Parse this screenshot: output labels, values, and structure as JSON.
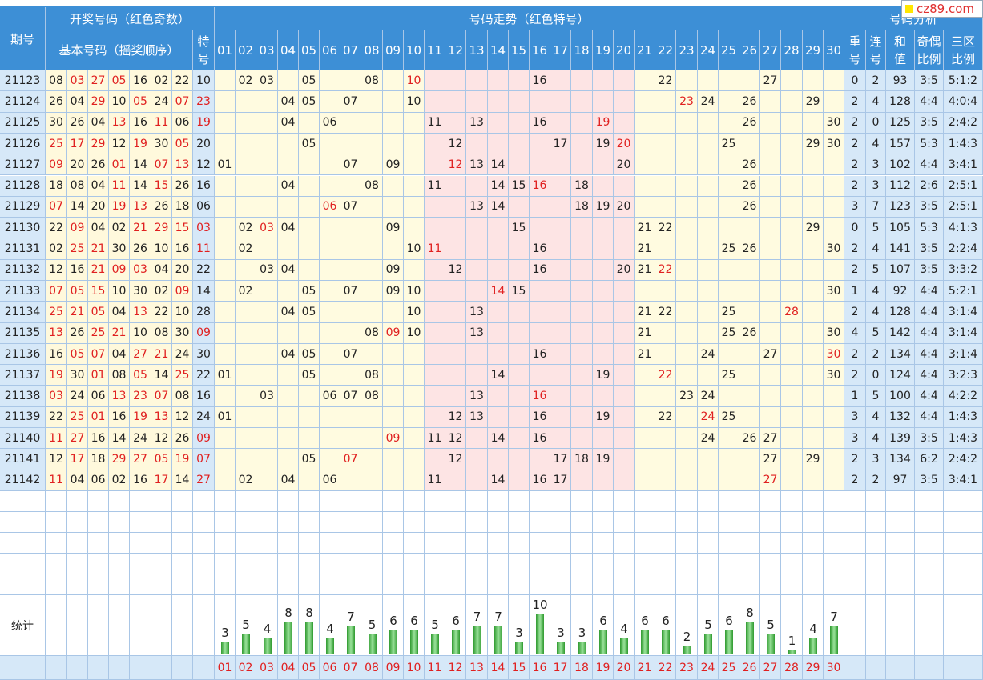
{
  "header": {
    "period_label": "期号",
    "open_group_label": "开奖号码（红色奇数）",
    "basic_label": "基本号码（摇奖顺序）",
    "special_label": "特号",
    "trend_group_label": "号码走势（红色特号）",
    "analysis_group_label": "号码分析",
    "repeat_label": "重号",
    "consec_label": "连号",
    "sum_label": "和值",
    "parity_label": "奇偶比例",
    "zone_label": "三区比例",
    "numbers": [
      "01",
      "02",
      "03",
      "04",
      "05",
      "06",
      "07",
      "08",
      "09",
      "10",
      "11",
      "12",
      "13",
      "14",
      "15",
      "16",
      "17",
      "18",
      "19",
      "20",
      "21",
      "22",
      "23",
      "24",
      "25",
      "26",
      "27",
      "28",
      "29",
      "30"
    ]
  },
  "logo_text": "cz89.com",
  "stats_label": "统计",
  "rows": [
    {
      "period": "21123",
      "nums": [
        "08",
        "03",
        "27",
        "05",
        "16",
        "02",
        "22"
      ],
      "special": "10",
      "repeat": "0",
      "consec": "2",
      "sum": "93",
      "parity": "3:5",
      "zone": "5:1:2"
    },
    {
      "period": "21124",
      "nums": [
        "26",
        "04",
        "29",
        "10",
        "05",
        "24",
        "07"
      ],
      "special": "23",
      "repeat": "2",
      "consec": "4",
      "sum": "128",
      "parity": "4:4",
      "zone": "4:0:4"
    },
    {
      "period": "21125",
      "nums": [
        "30",
        "26",
        "04",
        "13",
        "16",
        "11",
        "06"
      ],
      "special": "19",
      "repeat": "2",
      "consec": "0",
      "sum": "125",
      "parity": "3:5",
      "zone": "2:4:2"
    },
    {
      "period": "21126",
      "nums": [
        "25",
        "17",
        "29",
        "12",
        "19",
        "30",
        "05"
      ],
      "special": "20",
      "repeat": "2",
      "consec": "4",
      "sum": "157",
      "parity": "5:3",
      "zone": "1:4:3"
    },
    {
      "period": "21127",
      "nums": [
        "09",
        "20",
        "26",
        "01",
        "14",
        "07",
        "13"
      ],
      "special": "12",
      "repeat": "2",
      "consec": "3",
      "sum": "102",
      "parity": "4:4",
      "zone": "3:4:1"
    },
    {
      "period": "21128",
      "nums": [
        "18",
        "08",
        "04",
        "11",
        "14",
        "15",
        "26"
      ],
      "special": "16",
      "repeat": "2",
      "consec": "3",
      "sum": "112",
      "parity": "2:6",
      "zone": "2:5:1"
    },
    {
      "period": "21129",
      "nums": [
        "07",
        "14",
        "20",
        "19",
        "13",
        "26",
        "18"
      ],
      "special": "06",
      "repeat": "3",
      "consec": "7",
      "sum": "123",
      "parity": "3:5",
      "zone": "2:5:1"
    },
    {
      "period": "21130",
      "nums": [
        "22",
        "09",
        "04",
        "02",
        "21",
        "29",
        "15"
      ],
      "special": "03",
      "repeat": "0",
      "consec": "5",
      "sum": "105",
      "parity": "5:3",
      "zone": "4:1:3"
    },
    {
      "period": "21131",
      "nums": [
        "02",
        "25",
        "21",
        "30",
        "26",
        "10",
        "16"
      ],
      "special": "11",
      "repeat": "2",
      "consec": "4",
      "sum": "141",
      "parity": "3:5",
      "zone": "2:2:4"
    },
    {
      "period": "21132",
      "nums": [
        "12",
        "16",
        "21",
        "09",
        "03",
        "04",
        "20"
      ],
      "special": "22",
      "repeat": "2",
      "consec": "5",
      "sum": "107",
      "parity": "3:5",
      "zone": "3:3:2"
    },
    {
      "period": "21133",
      "nums": [
        "07",
        "05",
        "15",
        "10",
        "30",
        "02",
        "09"
      ],
      "special": "14",
      "repeat": "1",
      "consec": "4",
      "sum": "92",
      "parity": "4:4",
      "zone": "5:2:1"
    },
    {
      "period": "21134",
      "nums": [
        "25",
        "21",
        "05",
        "04",
        "13",
        "22",
        "10"
      ],
      "special": "28",
      "repeat": "2",
      "consec": "4",
      "sum": "128",
      "parity": "4:4",
      "zone": "3:1:4"
    },
    {
      "period": "21135",
      "nums": [
        "13",
        "26",
        "25",
        "21",
        "10",
        "08",
        "30"
      ],
      "special": "09",
      "repeat": "4",
      "consec": "5",
      "sum": "142",
      "parity": "4:4",
      "zone": "3:1:4"
    },
    {
      "period": "21136",
      "nums": [
        "16",
        "05",
        "07",
        "04",
        "27",
        "21",
        "24"
      ],
      "special": "30",
      "repeat": "2",
      "consec": "2",
      "sum": "134",
      "parity": "4:4",
      "zone": "3:1:4"
    },
    {
      "period": "21137",
      "nums": [
        "19",
        "30",
        "01",
        "08",
        "05",
        "14",
        "25"
      ],
      "special": "22",
      "repeat": "2",
      "consec": "0",
      "sum": "124",
      "parity": "4:4",
      "zone": "3:2:3"
    },
    {
      "period": "21138",
      "nums": [
        "03",
        "24",
        "06",
        "13",
        "23",
        "07",
        "08"
      ],
      "special": "16",
      "repeat": "1",
      "consec": "5",
      "sum": "100",
      "parity": "4:4",
      "zone": "4:2:2"
    },
    {
      "period": "21139",
      "nums": [
        "22",
        "25",
        "01",
        "16",
        "19",
        "13",
        "12"
      ],
      "special": "24",
      "repeat": "3",
      "consec": "4",
      "sum": "132",
      "parity": "4:4",
      "zone": "1:4:3"
    },
    {
      "period": "21140",
      "nums": [
        "11",
        "27",
        "16",
        "14",
        "24",
        "12",
        "26"
      ],
      "special": "09",
      "repeat": "3",
      "consec": "4",
      "sum": "139",
      "parity": "3:5",
      "zone": "1:4:3"
    },
    {
      "period": "21141",
      "nums": [
        "12",
        "17",
        "18",
        "29",
        "27",
        "05",
        "19"
      ],
      "special": "07",
      "repeat": "2",
      "consec": "3",
      "sum": "134",
      "parity": "6:2",
      "zone": "2:4:2"
    },
    {
      "period": "21142",
      "nums": [
        "11",
        "04",
        "06",
        "02",
        "16",
        "17",
        "14"
      ],
      "special": "27",
      "repeat": "2",
      "consec": "2",
      "sum": "97",
      "parity": "3:5",
      "zone": "3:4:1"
    }
  ],
  "chart_data": {
    "type": "bar",
    "categories": [
      "01",
      "02",
      "03",
      "04",
      "05",
      "06",
      "07",
      "08",
      "09",
      "10",
      "11",
      "12",
      "13",
      "14",
      "15",
      "16",
      "17",
      "18",
      "19",
      "20",
      "21",
      "22",
      "23",
      "24",
      "25",
      "26",
      "27",
      "28",
      "29",
      "30"
    ],
    "values": [
      3,
      5,
      4,
      8,
      8,
      4,
      7,
      5,
      6,
      6,
      5,
      6,
      7,
      7,
      3,
      10,
      3,
      3,
      6,
      4,
      6,
      6,
      2,
      5,
      6,
      8,
      5,
      1,
      4,
      7
    ]
  },
  "colors": {
    "header_bg": "#3d8fd6",
    "period_bg": "#d6e8f8",
    "basic_bg": "#fff9dc",
    "trend_bg_a": "#fffbe0",
    "trend_bg_b": "#fde4e4",
    "odd_red": "#e02020",
    "grid_line": "#a9c6e6"
  }
}
